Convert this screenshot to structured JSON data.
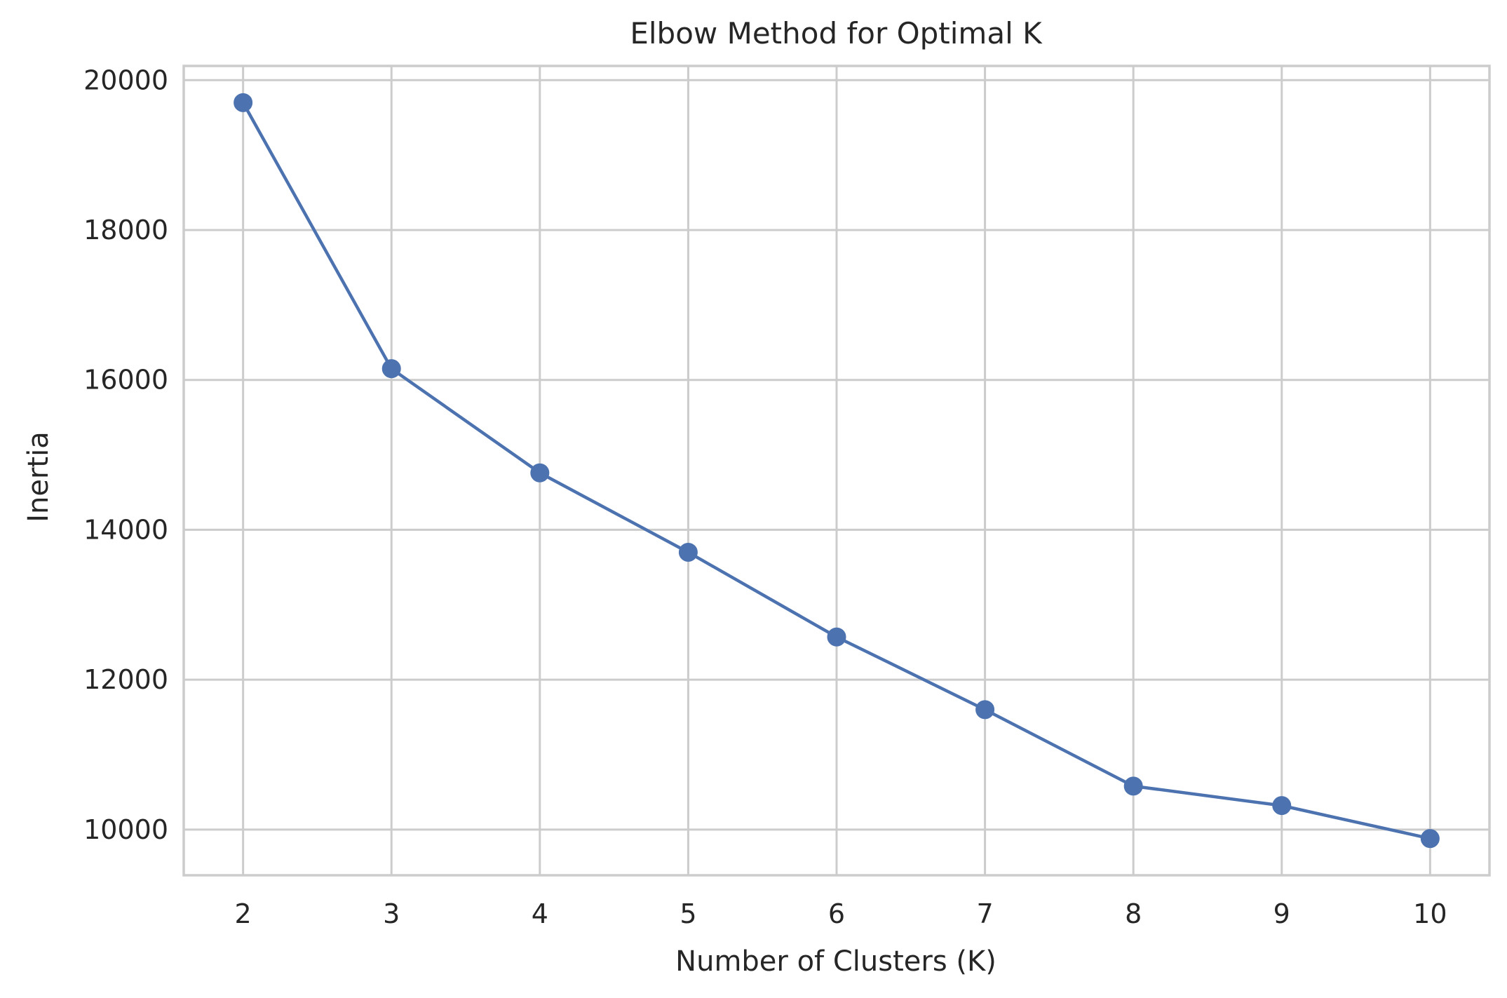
{
  "chart_data": {
    "type": "line",
    "title": "Elbow Method for Optimal K",
    "xlabel": "Number of Clusters (K)",
    "ylabel": "Inertia",
    "x": [
      2,
      3,
      4,
      5,
      6,
      7,
      8,
      9,
      10
    ],
    "series": [
      {
        "values": [
          19700,
          16150,
          14760,
          13700,
          12570,
          11600,
          10580,
          10320,
          9880
        ],
        "color": "#4c72b0",
        "marker": "circle"
      }
    ],
    "xticks": [
      2,
      3,
      4,
      5,
      6,
      7,
      8,
      9,
      10
    ],
    "yticks": [
      10000,
      12000,
      14000,
      16000,
      18000,
      20000
    ],
    "xlim": [
      1.6,
      10.4
    ],
    "ylim": [
      9390,
      20190
    ],
    "grid": true,
    "style": {
      "grid_color": "#cccccc",
      "axes_edge_color": "#cccccc",
      "text_color": "#262626",
      "background": "#ffffff"
    }
  }
}
